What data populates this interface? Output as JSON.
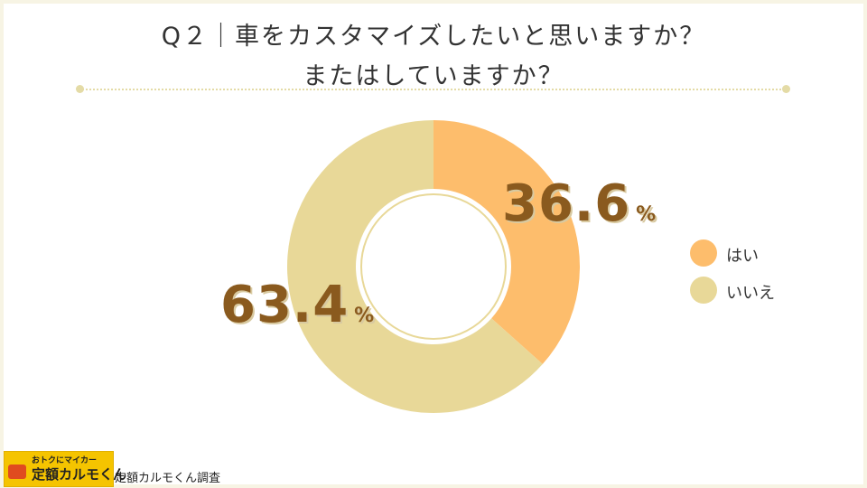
{
  "header": {
    "title_line1": "Q２｜車をカスタマイズしたいと思いますか？",
    "title_line2": "またはしていますか？"
  },
  "chart_data": {
    "type": "pie",
    "style": "donut",
    "categories": [
      "はい",
      "いいえ"
    ],
    "values": [
      36.6,
      63.4
    ],
    "unit": "%",
    "colors": [
      "#fdbd6c",
      "#e8d898"
    ],
    "labels": [
      {
        "value": "36.6",
        "unit": "%"
      },
      {
        "value": "63.4",
        "unit": "%"
      }
    ],
    "legend_position": "right"
  },
  "legend": [
    {
      "label": "はい",
      "color": "#fdbd6c"
    },
    {
      "label": "いいえ",
      "color": "#e8d898"
    }
  ],
  "footer": {
    "logo_top": "おトクにマイカー",
    "logo_main": "定額カルモくん",
    "source": "定額カルモくん調査"
  }
}
